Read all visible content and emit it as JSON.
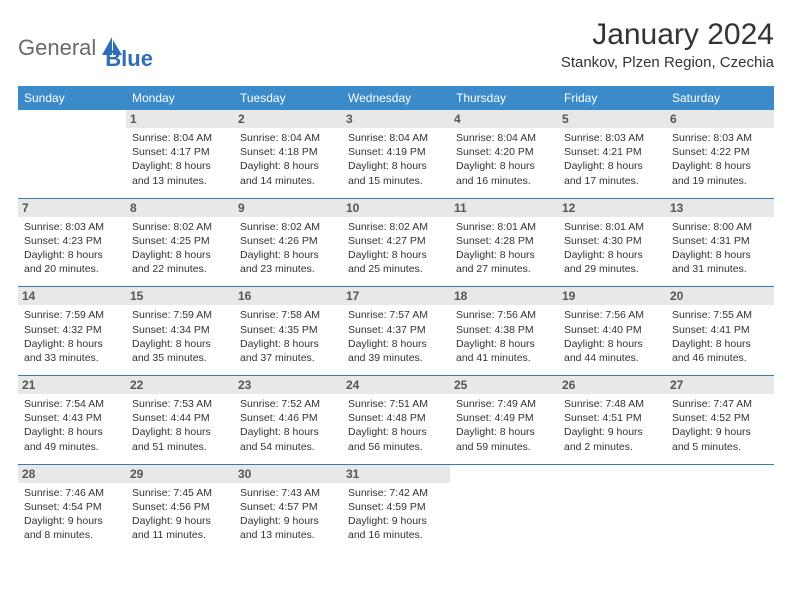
{
  "brand": {
    "part1": "General",
    "part2": "Blue"
  },
  "title": "January 2024",
  "location": "Stankov, Plzen Region, Czechia",
  "colors": {
    "header_bg": "#3b8ac9",
    "header_text": "#ffffff",
    "daynum_bg": "#e8e8e8",
    "daynum_text": "#555555",
    "border": "#3b7ab0",
    "brand_gray": "#6a6a6a",
    "brand_blue": "#2e6fb5"
  },
  "weekdays": [
    "Sunday",
    "Monday",
    "Tuesday",
    "Wednesday",
    "Thursday",
    "Friday",
    "Saturday"
  ],
  "weeks": [
    [
      {
        "day": "",
        "sunrise": "",
        "sunset": "",
        "daylight": ""
      },
      {
        "day": "1",
        "sunrise": "Sunrise: 8:04 AM",
        "sunset": "Sunset: 4:17 PM",
        "daylight": "Daylight: 8 hours and 13 minutes."
      },
      {
        "day": "2",
        "sunrise": "Sunrise: 8:04 AM",
        "sunset": "Sunset: 4:18 PM",
        "daylight": "Daylight: 8 hours and 14 minutes."
      },
      {
        "day": "3",
        "sunrise": "Sunrise: 8:04 AM",
        "sunset": "Sunset: 4:19 PM",
        "daylight": "Daylight: 8 hours and 15 minutes."
      },
      {
        "day": "4",
        "sunrise": "Sunrise: 8:04 AM",
        "sunset": "Sunset: 4:20 PM",
        "daylight": "Daylight: 8 hours and 16 minutes."
      },
      {
        "day": "5",
        "sunrise": "Sunrise: 8:03 AM",
        "sunset": "Sunset: 4:21 PM",
        "daylight": "Daylight: 8 hours and 17 minutes."
      },
      {
        "day": "6",
        "sunrise": "Sunrise: 8:03 AM",
        "sunset": "Sunset: 4:22 PM",
        "daylight": "Daylight: 8 hours and 19 minutes."
      }
    ],
    [
      {
        "day": "7",
        "sunrise": "Sunrise: 8:03 AM",
        "sunset": "Sunset: 4:23 PM",
        "daylight": "Daylight: 8 hours and 20 minutes."
      },
      {
        "day": "8",
        "sunrise": "Sunrise: 8:02 AM",
        "sunset": "Sunset: 4:25 PM",
        "daylight": "Daylight: 8 hours and 22 minutes."
      },
      {
        "day": "9",
        "sunrise": "Sunrise: 8:02 AM",
        "sunset": "Sunset: 4:26 PM",
        "daylight": "Daylight: 8 hours and 23 minutes."
      },
      {
        "day": "10",
        "sunrise": "Sunrise: 8:02 AM",
        "sunset": "Sunset: 4:27 PM",
        "daylight": "Daylight: 8 hours and 25 minutes."
      },
      {
        "day": "11",
        "sunrise": "Sunrise: 8:01 AM",
        "sunset": "Sunset: 4:28 PM",
        "daylight": "Daylight: 8 hours and 27 minutes."
      },
      {
        "day": "12",
        "sunrise": "Sunrise: 8:01 AM",
        "sunset": "Sunset: 4:30 PM",
        "daylight": "Daylight: 8 hours and 29 minutes."
      },
      {
        "day": "13",
        "sunrise": "Sunrise: 8:00 AM",
        "sunset": "Sunset: 4:31 PM",
        "daylight": "Daylight: 8 hours and 31 minutes."
      }
    ],
    [
      {
        "day": "14",
        "sunrise": "Sunrise: 7:59 AM",
        "sunset": "Sunset: 4:32 PM",
        "daylight": "Daylight: 8 hours and 33 minutes."
      },
      {
        "day": "15",
        "sunrise": "Sunrise: 7:59 AM",
        "sunset": "Sunset: 4:34 PM",
        "daylight": "Daylight: 8 hours and 35 minutes."
      },
      {
        "day": "16",
        "sunrise": "Sunrise: 7:58 AM",
        "sunset": "Sunset: 4:35 PM",
        "daylight": "Daylight: 8 hours and 37 minutes."
      },
      {
        "day": "17",
        "sunrise": "Sunrise: 7:57 AM",
        "sunset": "Sunset: 4:37 PM",
        "daylight": "Daylight: 8 hours and 39 minutes."
      },
      {
        "day": "18",
        "sunrise": "Sunrise: 7:56 AM",
        "sunset": "Sunset: 4:38 PM",
        "daylight": "Daylight: 8 hours and 41 minutes."
      },
      {
        "day": "19",
        "sunrise": "Sunrise: 7:56 AM",
        "sunset": "Sunset: 4:40 PM",
        "daylight": "Daylight: 8 hours and 44 minutes."
      },
      {
        "day": "20",
        "sunrise": "Sunrise: 7:55 AM",
        "sunset": "Sunset: 4:41 PM",
        "daylight": "Daylight: 8 hours and 46 minutes."
      }
    ],
    [
      {
        "day": "21",
        "sunrise": "Sunrise: 7:54 AM",
        "sunset": "Sunset: 4:43 PM",
        "daylight": "Daylight: 8 hours and 49 minutes."
      },
      {
        "day": "22",
        "sunrise": "Sunrise: 7:53 AM",
        "sunset": "Sunset: 4:44 PM",
        "daylight": "Daylight: 8 hours and 51 minutes."
      },
      {
        "day": "23",
        "sunrise": "Sunrise: 7:52 AM",
        "sunset": "Sunset: 4:46 PM",
        "daylight": "Daylight: 8 hours and 54 minutes."
      },
      {
        "day": "24",
        "sunrise": "Sunrise: 7:51 AM",
        "sunset": "Sunset: 4:48 PM",
        "daylight": "Daylight: 8 hours and 56 minutes."
      },
      {
        "day": "25",
        "sunrise": "Sunrise: 7:49 AM",
        "sunset": "Sunset: 4:49 PM",
        "daylight": "Daylight: 8 hours and 59 minutes."
      },
      {
        "day": "26",
        "sunrise": "Sunrise: 7:48 AM",
        "sunset": "Sunset: 4:51 PM",
        "daylight": "Daylight: 9 hours and 2 minutes."
      },
      {
        "day": "27",
        "sunrise": "Sunrise: 7:47 AM",
        "sunset": "Sunset: 4:52 PM",
        "daylight": "Daylight: 9 hours and 5 minutes."
      }
    ],
    [
      {
        "day": "28",
        "sunrise": "Sunrise: 7:46 AM",
        "sunset": "Sunset: 4:54 PM",
        "daylight": "Daylight: 9 hours and 8 minutes."
      },
      {
        "day": "29",
        "sunrise": "Sunrise: 7:45 AM",
        "sunset": "Sunset: 4:56 PM",
        "daylight": "Daylight: 9 hours and 11 minutes."
      },
      {
        "day": "30",
        "sunrise": "Sunrise: 7:43 AM",
        "sunset": "Sunset: 4:57 PM",
        "daylight": "Daylight: 9 hours and 13 minutes."
      },
      {
        "day": "31",
        "sunrise": "Sunrise: 7:42 AM",
        "sunset": "Sunset: 4:59 PM",
        "daylight": "Daylight: 9 hours and 16 minutes."
      },
      {
        "day": "",
        "sunrise": "",
        "sunset": "",
        "daylight": ""
      },
      {
        "day": "",
        "sunrise": "",
        "sunset": "",
        "daylight": ""
      },
      {
        "day": "",
        "sunrise": "",
        "sunset": "",
        "daylight": ""
      }
    ]
  ]
}
